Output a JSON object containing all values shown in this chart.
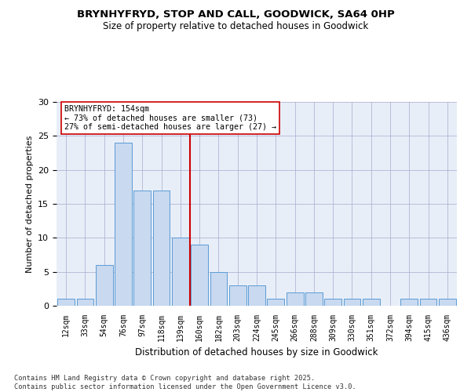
{
  "title_line1": "BRYNHYFRYD, STOP AND CALL, GOODWICK, SA64 0HP",
  "title_line2": "Size of property relative to detached houses in Goodwick",
  "xlabel": "Distribution of detached houses by size in Goodwick",
  "ylabel": "Number of detached properties",
  "categories": [
    "12sqm",
    "33sqm",
    "54sqm",
    "76sqm",
    "97sqm",
    "118sqm",
    "139sqm",
    "160sqm",
    "182sqm",
    "203sqm",
    "224sqm",
    "245sqm",
    "266sqm",
    "288sqm",
    "309sqm",
    "330sqm",
    "351sqm",
    "372sqm",
    "394sqm",
    "415sqm",
    "436sqm"
  ],
  "values": [
    1,
    1,
    6,
    24,
    17,
    17,
    10,
    9,
    5,
    3,
    3,
    1,
    2,
    2,
    1,
    1,
    1,
    0,
    1,
    1,
    1
  ],
  "bar_color": "#c8d9f0",
  "bar_edge_color": "#5b9bd5",
  "vline_x": 6.5,
  "vline_color": "#cc0000",
  "vline_label": "BRYNHYFRYD: 154sqm",
  "annotation_line2": "← 73% of detached houses are smaller (73)",
  "annotation_line3": "27% of semi-detached houses are larger (27) →",
  "annotation_box_color": "#ffffff",
  "annotation_box_edge": "#cc0000",
  "ylim": [
    0,
    30
  ],
  "yticks": [
    0,
    5,
    10,
    15,
    20,
    25,
    30
  ],
  "footnote": "Contains HM Land Registry data © Crown copyright and database right 2025.\nContains public sector information licensed under the Open Government Licence v3.0.",
  "plot_bg_color": "#e8eef8",
  "fig_bg_color": "#ffffff"
}
